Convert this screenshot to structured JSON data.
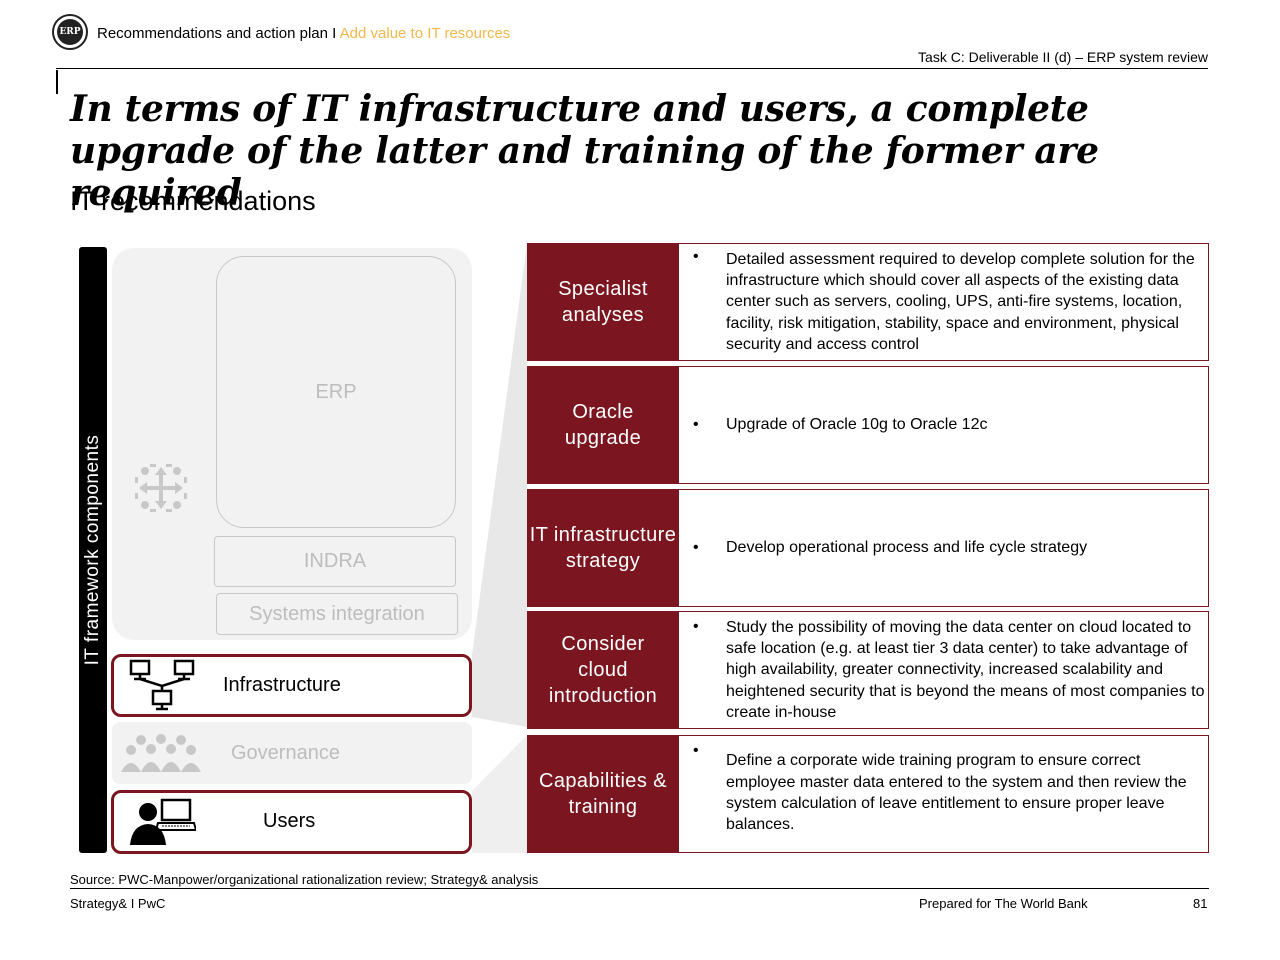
{
  "header": {
    "logo_text": "ERP",
    "breadcrumb_main": "Recommendations and action plan I ",
    "breadcrumb_accent": "Add value to IT resources",
    "task": "Task C: Deliverable II (d) – ERP system review"
  },
  "title": "In terms of IT infrastructure and users, a complete upgrade of the latter and training of the former are required",
  "subtitle": "IT recommendations",
  "diagram": {
    "vertical_label": "IT framework components",
    "erp": "ERP",
    "indra": "INDRA",
    "systems_integration": "Systems integration",
    "infrastructure": "Infrastructure",
    "governance": "Governance",
    "users": "Users",
    "icons": [
      "arrows-icon",
      "network-icon",
      "people-group-icon",
      "user-laptop-icon"
    ]
  },
  "recommendations": [
    {
      "heading": "Specialist analyses",
      "bullet": "•",
      "text": "Detailed assessment required to develop complete solution for the infrastructure which should cover all aspects of the existing data center such as servers, cooling, UPS, anti-fire systems, location, facility, risk mitigation, stability, space and environment, physical security and access control"
    },
    {
      "heading": "Oracle upgrade",
      "bullet": "•",
      "text": "Upgrade of Oracle 10g to Oracle 12c"
    },
    {
      "heading": "IT infrastructure strategy",
      "bullet": "•",
      "text": "Develop operational process and life cycle strategy"
    },
    {
      "heading": "Consider cloud introduction",
      "bullet": "•",
      "text": "Study the possibility of moving the data center on cloud located to safe location (e.g. at least tier 3 data center) to take advantage of high availability, greater connectivity, increased scalability and heightened security that is beyond the means of most companies to create in-house"
    },
    {
      "heading": "Capabilities & training",
      "bullet": "•",
      "text": "Define a corporate wide training program to ensure correct employee master data entered to the system and then review the system calculation of leave entitlement to ensure proper leave balances."
    }
  ],
  "footer": {
    "source": "Source: PWC-Manpower/organizational rationalization review; Strategy& analysis",
    "left": "Strategy& I PwC",
    "right": "Prepared for The World Bank",
    "page": "81"
  },
  "colors": {
    "brand_red": "#7b1620",
    "accent_yellow": "#f2b84b",
    "muted_gray": "#bdbdbd",
    "panel_gray": "#f2f2f2"
  }
}
